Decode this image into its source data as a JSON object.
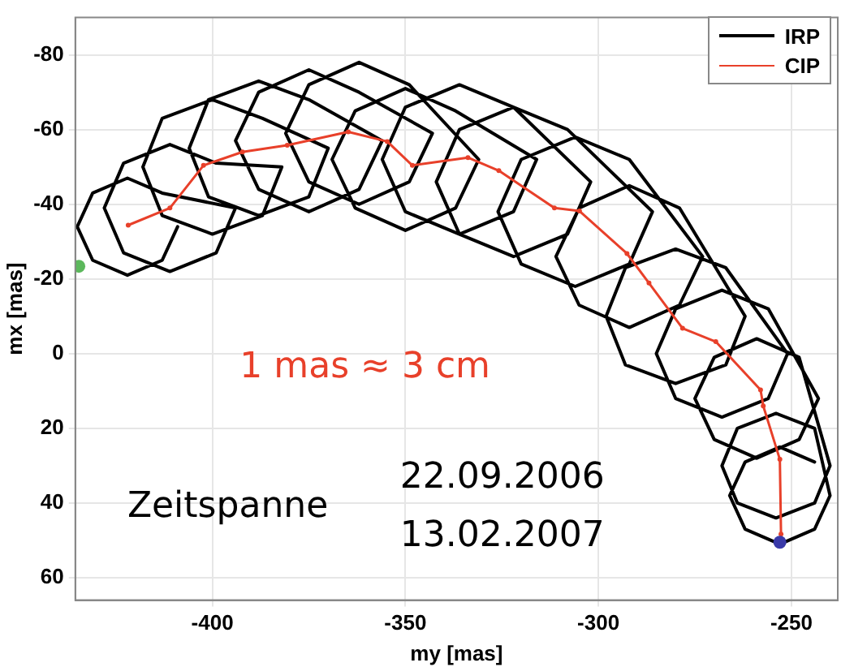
{
  "chart_data": {
    "type": "line",
    "xlabel": "my [mas]",
    "ylabel": "mx [mas]",
    "xlim": [
      -435.5,
      -238
    ],
    "ylim": [
      66,
      -90
    ],
    "xticks": [
      -400,
      -350,
      -300,
      -250
    ],
    "yticks": [
      -80,
      -60,
      -40,
      -20,
      0,
      20,
      40,
      60
    ],
    "grid": true,
    "legend": "top right",
    "series": [
      {
        "name": "IRP",
        "color": "#000000",
        "marker": "none",
        "x": [
          -409,
          -413,
          -422,
          -431,
          -435,
          -431,
          -422,
          -413,
          -394,
          -399,
          -411,
          -423,
          -428,
          -423,
          -411,
          -399,
          -382,
          -387,
          -400,
          -413,
          -418,
          -413,
          -400,
          -387,
          -370,
          -375,
          -388,
          -401,
          -406,
          -401,
          -388,
          -375,
          -356,
          -362,
          -375,
          -388,
          -394,
          -388,
          -375,
          -362,
          -343,
          -349,
          -362,
          -375,
          -381,
          -375,
          -362,
          -349,
          -331,
          -337,
          -350,
          -363,
          -369,
          -363,
          -350,
          -337,
          -316,
          -322,
          -336,
          -350,
          -356,
          -350,
          -336,
          -322,
          -302,
          -308,
          -322,
          -336,
          -342,
          -336,
          -322,
          -308,
          -286,
          -292,
          -306,
          -320,
          -326,
          -320,
          -306,
          -292,
          -273,
          -279,
          -292,
          -305,
          -311,
          -305,
          -292,
          -279,
          -262,
          -267,
          -280,
          -293,
          -298,
          -293,
          -280,
          -267,
          -251,
          -256,
          -268,
          -280,
          -285,
          -280,
          -268,
          -256,
          -243,
          -248,
          -259,
          -270,
          -275,
          -270,
          -259,
          -248,
          -240,
          -244,
          -254,
          -264,
          -268,
          -264,
          -254,
          -244,
          -240,
          -244,
          -253,
          -262,
          -266,
          -262,
          -253,
          -244
        ],
        "values": [
          -34,
          -25,
          -21,
          -25,
          -34,
          -43,
          -47,
          -43,
          -39,
          -27,
          -22,
          -27,
          -39,
          -51,
          -56,
          -51,
          -50,
          -37,
          -32,
          -37,
          -50,
          -63,
          -68,
          -63,
          -55,
          -42,
          -37,
          -42,
          -55,
          -68,
          -73,
          -68,
          -57,
          -44,
          -38,
          -44,
          -57,
          -70,
          -76,
          -70,
          -59,
          -46,
          -40,
          -46,
          -59,
          -72,
          -78,
          -72,
          -52,
          -39,
          -33,
          -39,
          -52,
          -65,
          -71,
          -65,
          -52,
          -38,
          -32,
          -38,
          -52,
          -66,
          -72,
          -66,
          -46,
          -32,
          -26,
          -32,
          -46,
          -60,
          -66,
          -60,
          -38,
          -24,
          -18,
          -24,
          -38,
          -52,
          -58,
          -52,
          -26,
          -13,
          -7,
          -13,
          -26,
          -39,
          -45,
          -39,
          -10,
          3,
          8,
          3,
          -10,
          -23,
          -28,
          -23,
          0,
          12,
          17,
          12,
          0,
          -12,
          -17,
          -12,
          12,
          23,
          28,
          23,
          12,
          1,
          -4,
          1,
          30,
          40,
          44,
          40,
          30,
          20,
          16,
          20,
          38,
          47,
          51,
          47,
          38,
          29,
          25,
          29
        ]
      },
      {
        "name": "CIP",
        "color": "#e8402a",
        "marker": "circle",
        "x": [
          -421.8,
          -411,
          -402.3,
          -392.2,
          -380.6,
          -364.8,
          -354.7,
          -348.2,
          -333.8,
          -325.8,
          -311.4,
          -304.9,
          -292.6,
          -286.9,
          -278.2,
          -269.6,
          -258,
          -257.3,
          -253,
          -252.7
        ],
        "values": [
          -34.4,
          -39,
          -50.4,
          -54,
          -55.8,
          -59.4,
          -56.8,
          -50.4,
          -52.5,
          -49,
          -39,
          -38.2,
          -26.8,
          -18.9,
          -6.8,
          -3.2,
          9.7,
          14,
          28.3,
          48.3
        ]
      },
      {
        "type": "scatter",
        "color": "#5cb85c",
        "marker": "circle",
        "x": [
          -434.6
        ],
        "values": [
          -23.4
        ]
      },
      {
        "type": "scatter",
        "color": "#3a3aa8",
        "marker": "circle",
        "x": [
          -253
        ],
        "values": [
          50.5
        ]
      }
    ],
    "annotations": [
      "1 mas ≈ 3 cm",
      "Zeitspanne",
      "22.09.2006",
      "13.02.2007"
    ]
  }
}
